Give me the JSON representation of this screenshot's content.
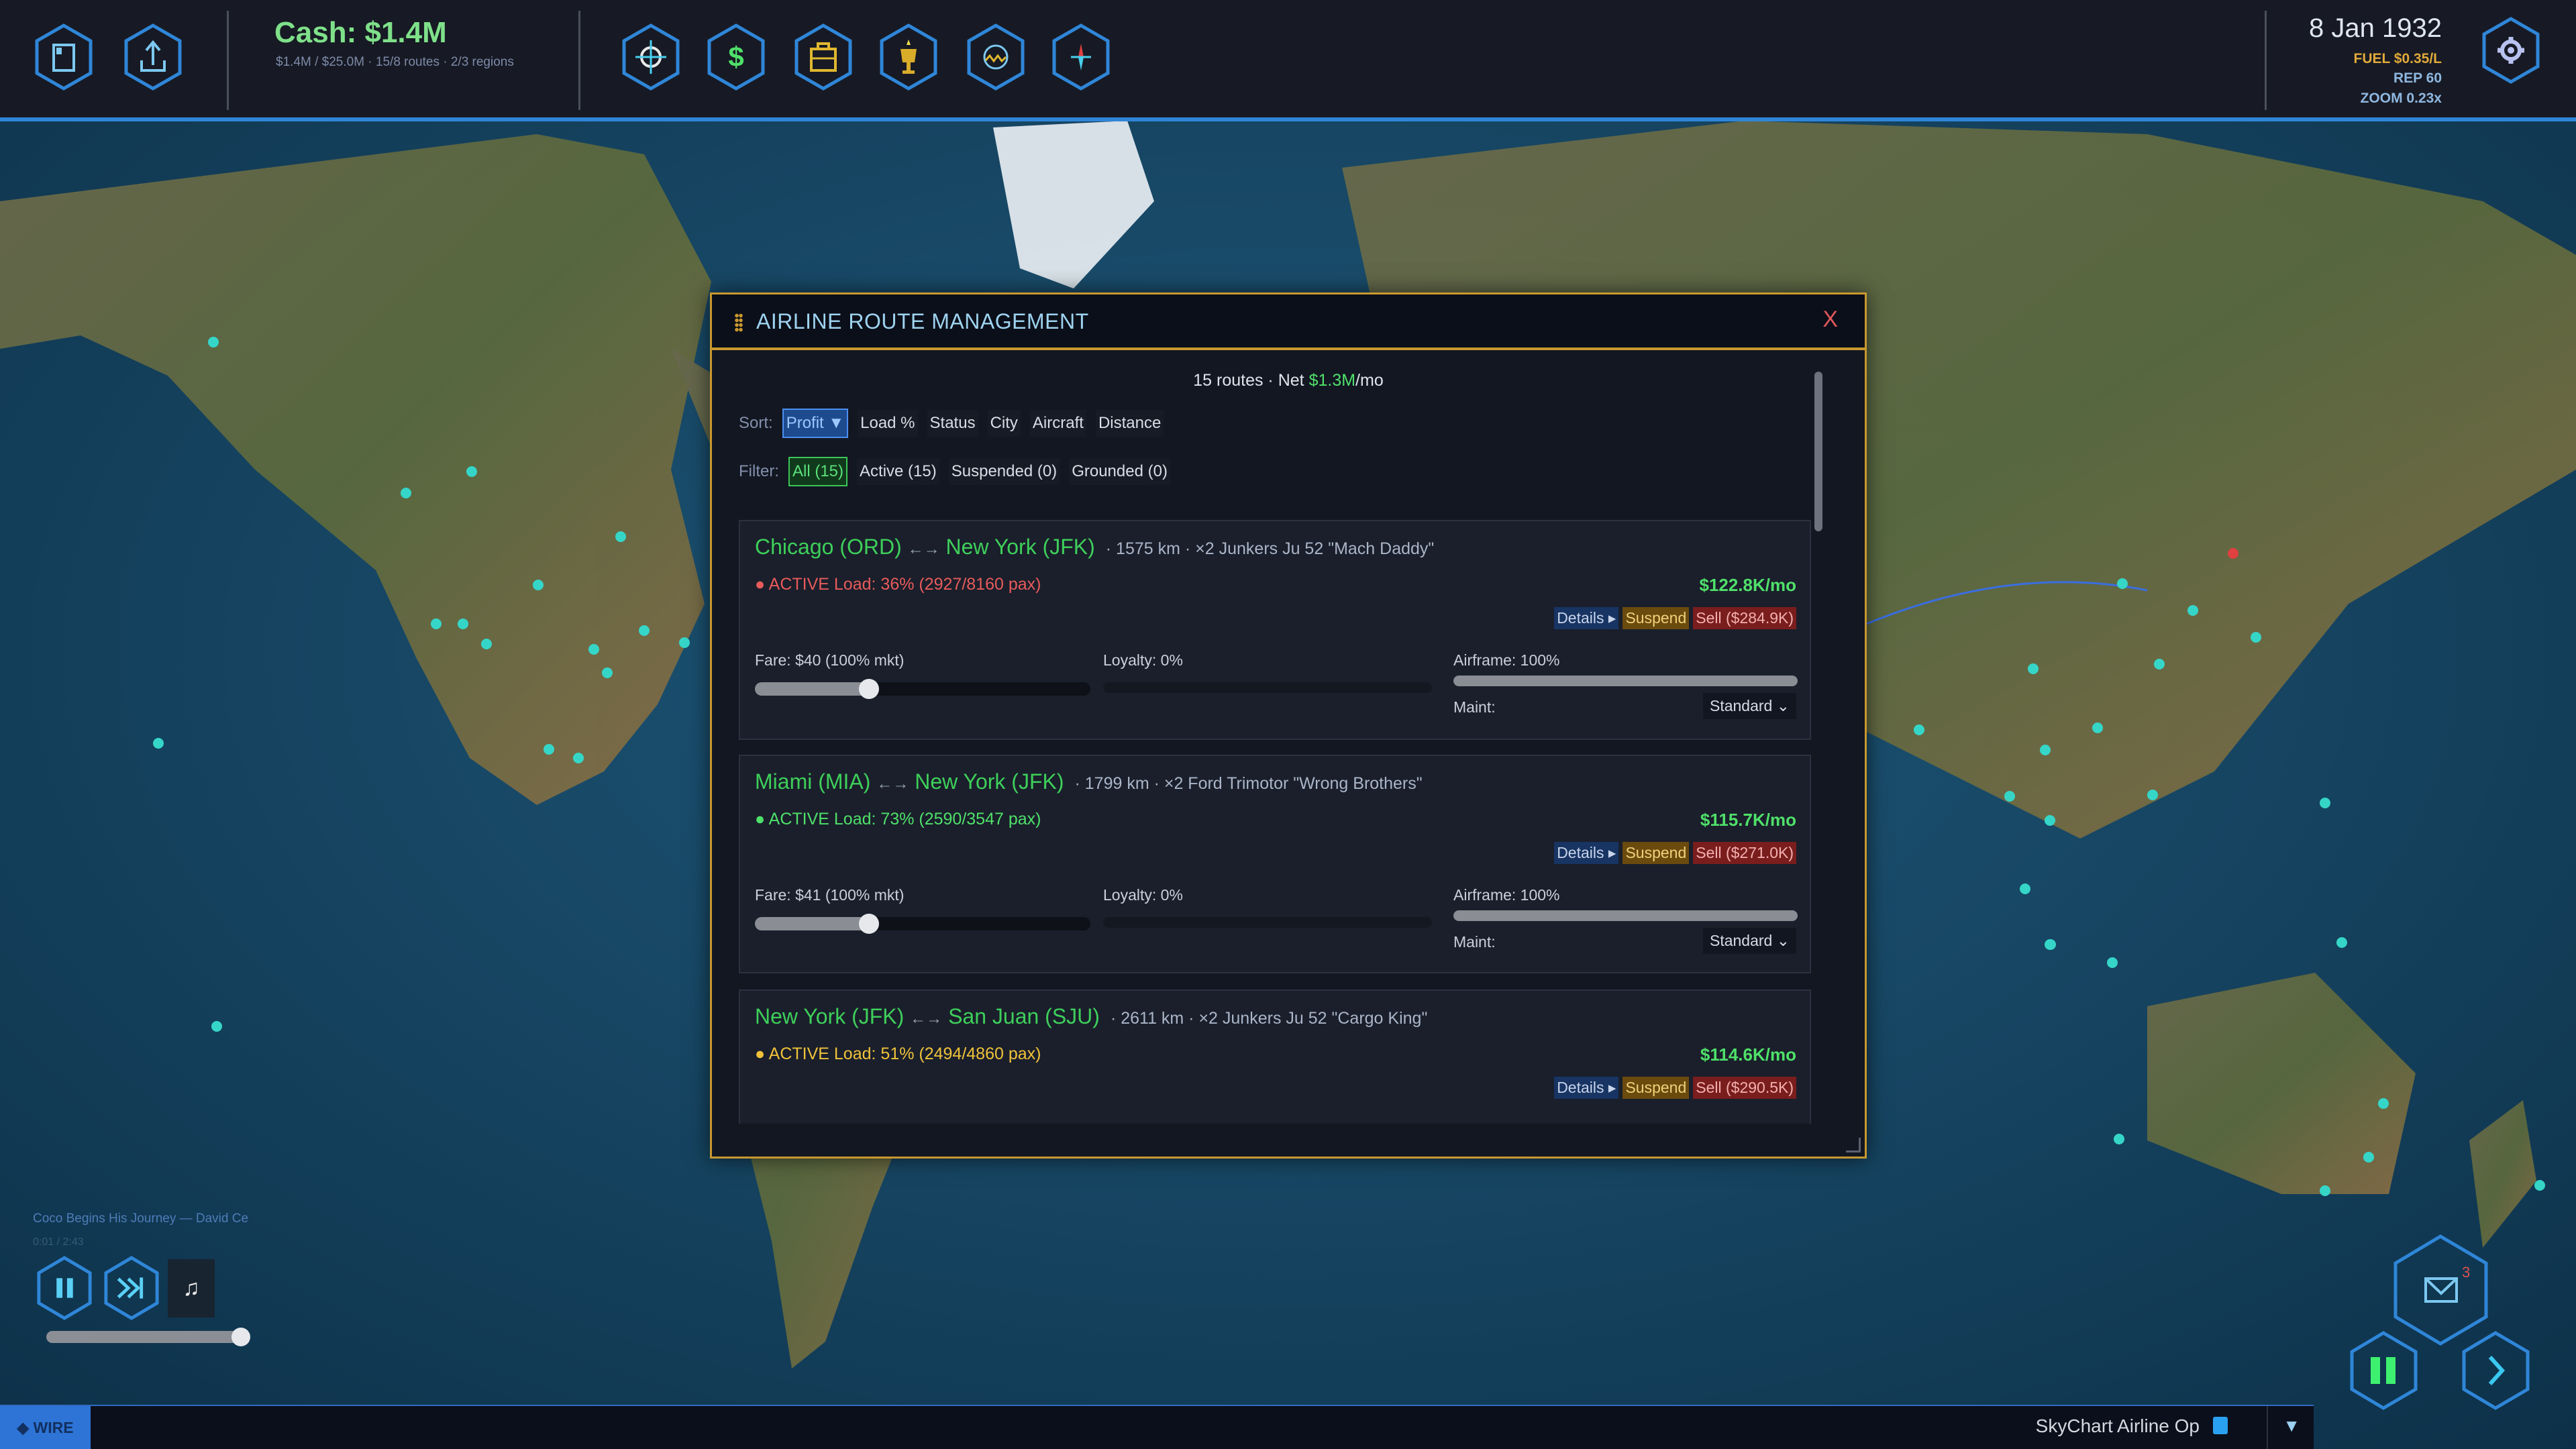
{
  "topbar": {
    "left_icons": [
      "save-icon",
      "export-icon"
    ],
    "cash": "Cash: $1.4M",
    "cash_sub": "$1.4M / $25.0M  ·  15/8 routes  ·  2/3 regions",
    "center_icons": [
      "crosshair-icon",
      "dollar-icon",
      "briefcase-icon",
      "trophy-icon",
      "globe-icon",
      "compass-icon"
    ],
    "date": "8 Jan 1932",
    "fuel": "FUEL $0.35/L",
    "rep": "REP 60",
    "zoom": "ZOOM 0.23x",
    "colors": {
      "accent": "#2f86d8",
      "cash": "#7fe08a",
      "fuel": "#e0a93a",
      "stat": "#8fb7e0"
    }
  },
  "modal": {
    "title": "AIRLINE ROUTE MANAGEMENT",
    "close": "X",
    "summary_prefix": "15 routes  ·  Net ",
    "summary_net": "$1.3M",
    "summary_suffix": "/mo",
    "sort_label": "Sort:",
    "sort_options": [
      "Profit ▼",
      "Load %",
      "Status",
      "City",
      "Aircraft",
      "Distance"
    ],
    "sort_selected": "Profit ▼",
    "filter_label": "Filter:",
    "filter_options": [
      "All (15)",
      "Active (15)",
      "Suspended (0)",
      "Grounded (0)"
    ],
    "filter_selected": "All (15)",
    "routes": [
      {
        "from": "Chicago (ORD)",
        "arrow": "←→",
        "to": "New York (JFK)",
        "meta": "·  1575 km  ·  ×2  Junkers Ju 52 \"Mach Daddy\"",
        "status": "● ACTIVE  Load: 36%  (2927/8160 pax)",
        "status_color": "#e85b5b",
        "profit": "$122.8K/mo",
        "details": "Details ▸",
        "suspend": "Suspend",
        "sell": "Sell ($284.9K)",
        "fare": "Fare: $40  (100% mkt)",
        "fare_level": 0.34,
        "loyalty": "Loyalty: 0%",
        "loyalty_level": 0,
        "airframe": "Airframe: 100%",
        "airframe_level": 1,
        "maint_label": "Maint:",
        "maint": "Standard ⌄"
      },
      {
        "from": "Miami (MIA)",
        "arrow": "←→",
        "to": "New York (JFK)",
        "meta": "·  1799 km  ·  ×2  Ford Trimotor \"Wrong Brothers\"",
        "status": "● ACTIVE  Load: 73%  (2590/3547 pax)",
        "status_color": "#4fe06a",
        "profit": "$115.7K/mo",
        "details": "Details ▸",
        "suspend": "Suspend",
        "sell": "Sell ($271.0K)",
        "fare": "Fare: $41  (100% mkt)",
        "fare_level": 0.34,
        "loyalty": "Loyalty: 0%",
        "loyalty_level": 0,
        "airframe": "Airframe: 100%",
        "airframe_level": 1,
        "maint_label": "Maint:",
        "maint": "Standard ⌄"
      },
      {
        "from": "New York (JFK)",
        "arrow": "←→",
        "to": "San Juan (SJU)",
        "meta": "·  2611 km  ·  ×2  Junkers Ju 52 \"Cargo King\"",
        "status": "● ACTIVE  Load: 51%  (2494/4860 pax)",
        "status_color": "#f0c23a",
        "profit": "$114.6K/mo",
        "details": "Details ▸",
        "suspend": "Suspend",
        "sell": "Sell ($290.5K)"
      }
    ]
  },
  "music": {
    "title": "Coco Begins His Journey  —  David Ce",
    "time": "0:01 / 2:43",
    "note": "♫",
    "volume": 1.0
  },
  "bottombar": {
    "wire": "◆ WIRE",
    "app_name": "SkyChart Airline Op",
    "dropdown": "▼"
  },
  "corner": {
    "mail_badge": "3"
  }
}
